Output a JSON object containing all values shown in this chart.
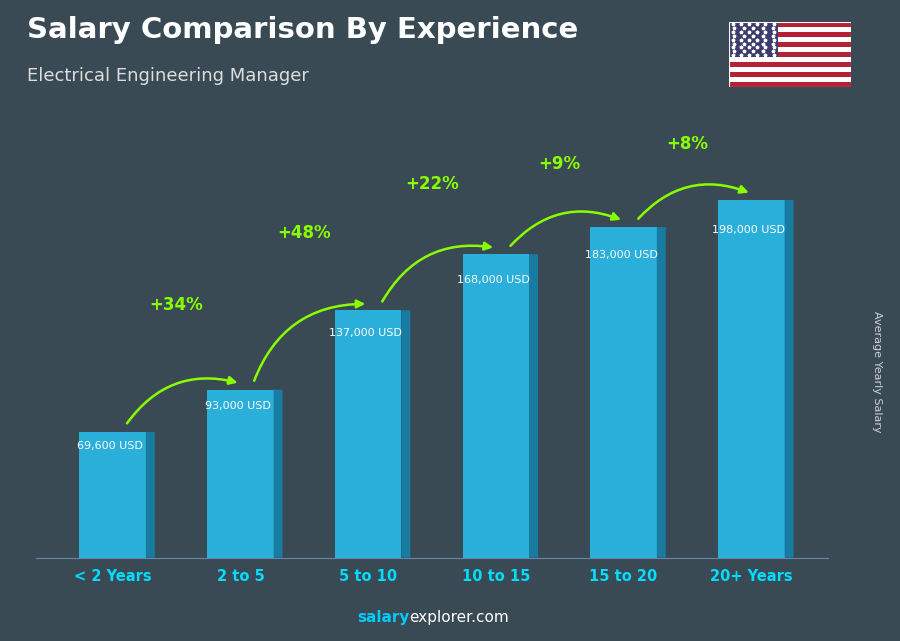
{
  "title": "Salary Comparison By Experience",
  "subtitle": "Electrical Engineering Manager",
  "categories": [
    "< 2 Years",
    "2 to 5",
    "5 to 10",
    "10 to 15",
    "15 to 20",
    "20+ Years"
  ],
  "values": [
    69600,
    93000,
    137000,
    168000,
    183000,
    198000
  ],
  "salary_labels": [
    "69,600 USD",
    "93,000 USD",
    "137,000 USD",
    "168,000 USD",
    "183,000 USD",
    "198,000 USD"
  ],
  "pct_changes": [
    null,
    "+34%",
    "+48%",
    "+22%",
    "+9%",
    "+8%"
  ],
  "bar_face_color": "#29b8e8",
  "bar_side_color": "#1580a8",
  "bar_top_color": "#5cd8f8",
  "bar_edge_color": "#0a6080",
  "bg_color": "#3a4a55",
  "title_color": "#ffffff",
  "subtitle_color": "#dddddd",
  "salary_label_color": "#ffffff",
  "pct_color": "#88ff00",
  "cat_label_color": "#00ddff",
  "watermark_salary_color": "#00ccff",
  "watermark_rest_color": "#ffffff",
  "ylabel_text": "Average Yearly Salary",
  "ylim_max": 220000,
  "figsize": [
    9.0,
    6.41
  ],
  "dpi": 100
}
